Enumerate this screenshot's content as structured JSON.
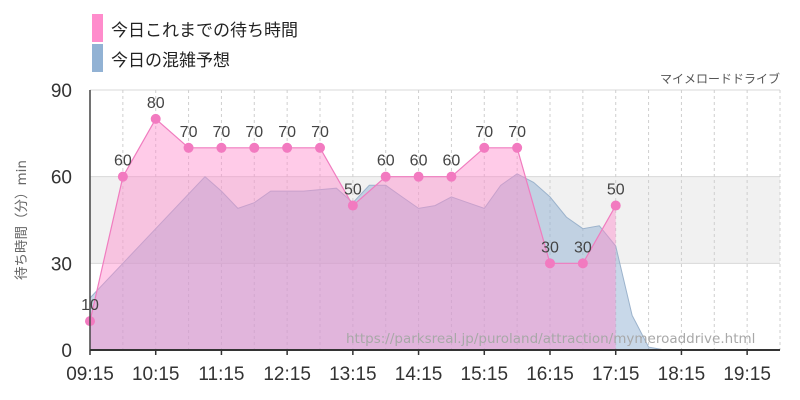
{
  "chart_data": {
    "type": "area",
    "subtitle": "マイメロードドライブ",
    "ylabel": "待ち時間（分）min",
    "watermark": "https://parksreal.jp/puroland/attraction/mymeroaddrive.html",
    "ylim": [
      0,
      90
    ],
    "yticks": [
      "0",
      "30",
      "60",
      "90"
    ],
    "xrange": [
      "09:15",
      "19:45"
    ],
    "xticks": [
      "09:15",
      "10:15",
      "11:15",
      "12:15",
      "13:15",
      "14:15",
      "15:15",
      "16:15",
      "17:15",
      "18:15",
      "19:15"
    ],
    "grid": true,
    "legend_position": "top-left",
    "series": [
      {
        "name": "今日これまでの待ち時間",
        "color": "#ff8ccc",
        "points": [
          [
            "09:15",
            10
          ],
          [
            "09:45",
            60
          ],
          [
            "10:15",
            80
          ],
          [
            "10:45",
            70
          ],
          [
            "11:15",
            70
          ],
          [
            "11:45",
            70
          ],
          [
            "12:15",
            70
          ],
          [
            "12:45",
            70
          ],
          [
            "13:15",
            50
          ],
          [
            "13:45",
            60
          ],
          [
            "14:15",
            60
          ],
          [
            "14:45",
            60
          ],
          [
            "15:15",
            70
          ],
          [
            "15:45",
            70
          ],
          [
            "16:15",
            30
          ],
          [
            "16:45",
            30
          ],
          [
            "17:15",
            50
          ]
        ]
      },
      {
        "name": "今日の混雑予想",
        "color": "#92b2d4",
        "points": [
          [
            "09:15",
            18
          ],
          [
            "09:45",
            30
          ],
          [
            "10:15",
            42
          ],
          [
            "10:45",
            54
          ],
          [
            "11:00",
            60
          ],
          [
            "11:15",
            55
          ],
          [
            "11:30",
            49
          ],
          [
            "11:45",
            51
          ],
          [
            "12:00",
            55
          ],
          [
            "12:30",
            55
          ],
          [
            "13:00",
            56
          ],
          [
            "13:15",
            51
          ],
          [
            "13:30",
            57
          ],
          [
            "13:45",
            57
          ],
          [
            "14:00",
            53
          ],
          [
            "14:15",
            49
          ],
          [
            "14:30",
            50
          ],
          [
            "14:45",
            53
          ],
          [
            "15:00",
            51
          ],
          [
            "15:15",
            49
          ],
          [
            "15:30",
            57
          ],
          [
            "15:45",
            61
          ],
          [
            "16:00",
            58
          ],
          [
            "16:15",
            53
          ],
          [
            "16:30",
            46
          ],
          [
            "16:45",
            42
          ],
          [
            "17:00",
            43
          ],
          [
            "17:15",
            36
          ],
          [
            "17:30",
            12
          ],
          [
            "17:45",
            1
          ],
          [
            "18:00",
            0
          ],
          [
            "19:45",
            0
          ]
        ]
      }
    ],
    "grid_band": [
      30,
      60
    ]
  }
}
